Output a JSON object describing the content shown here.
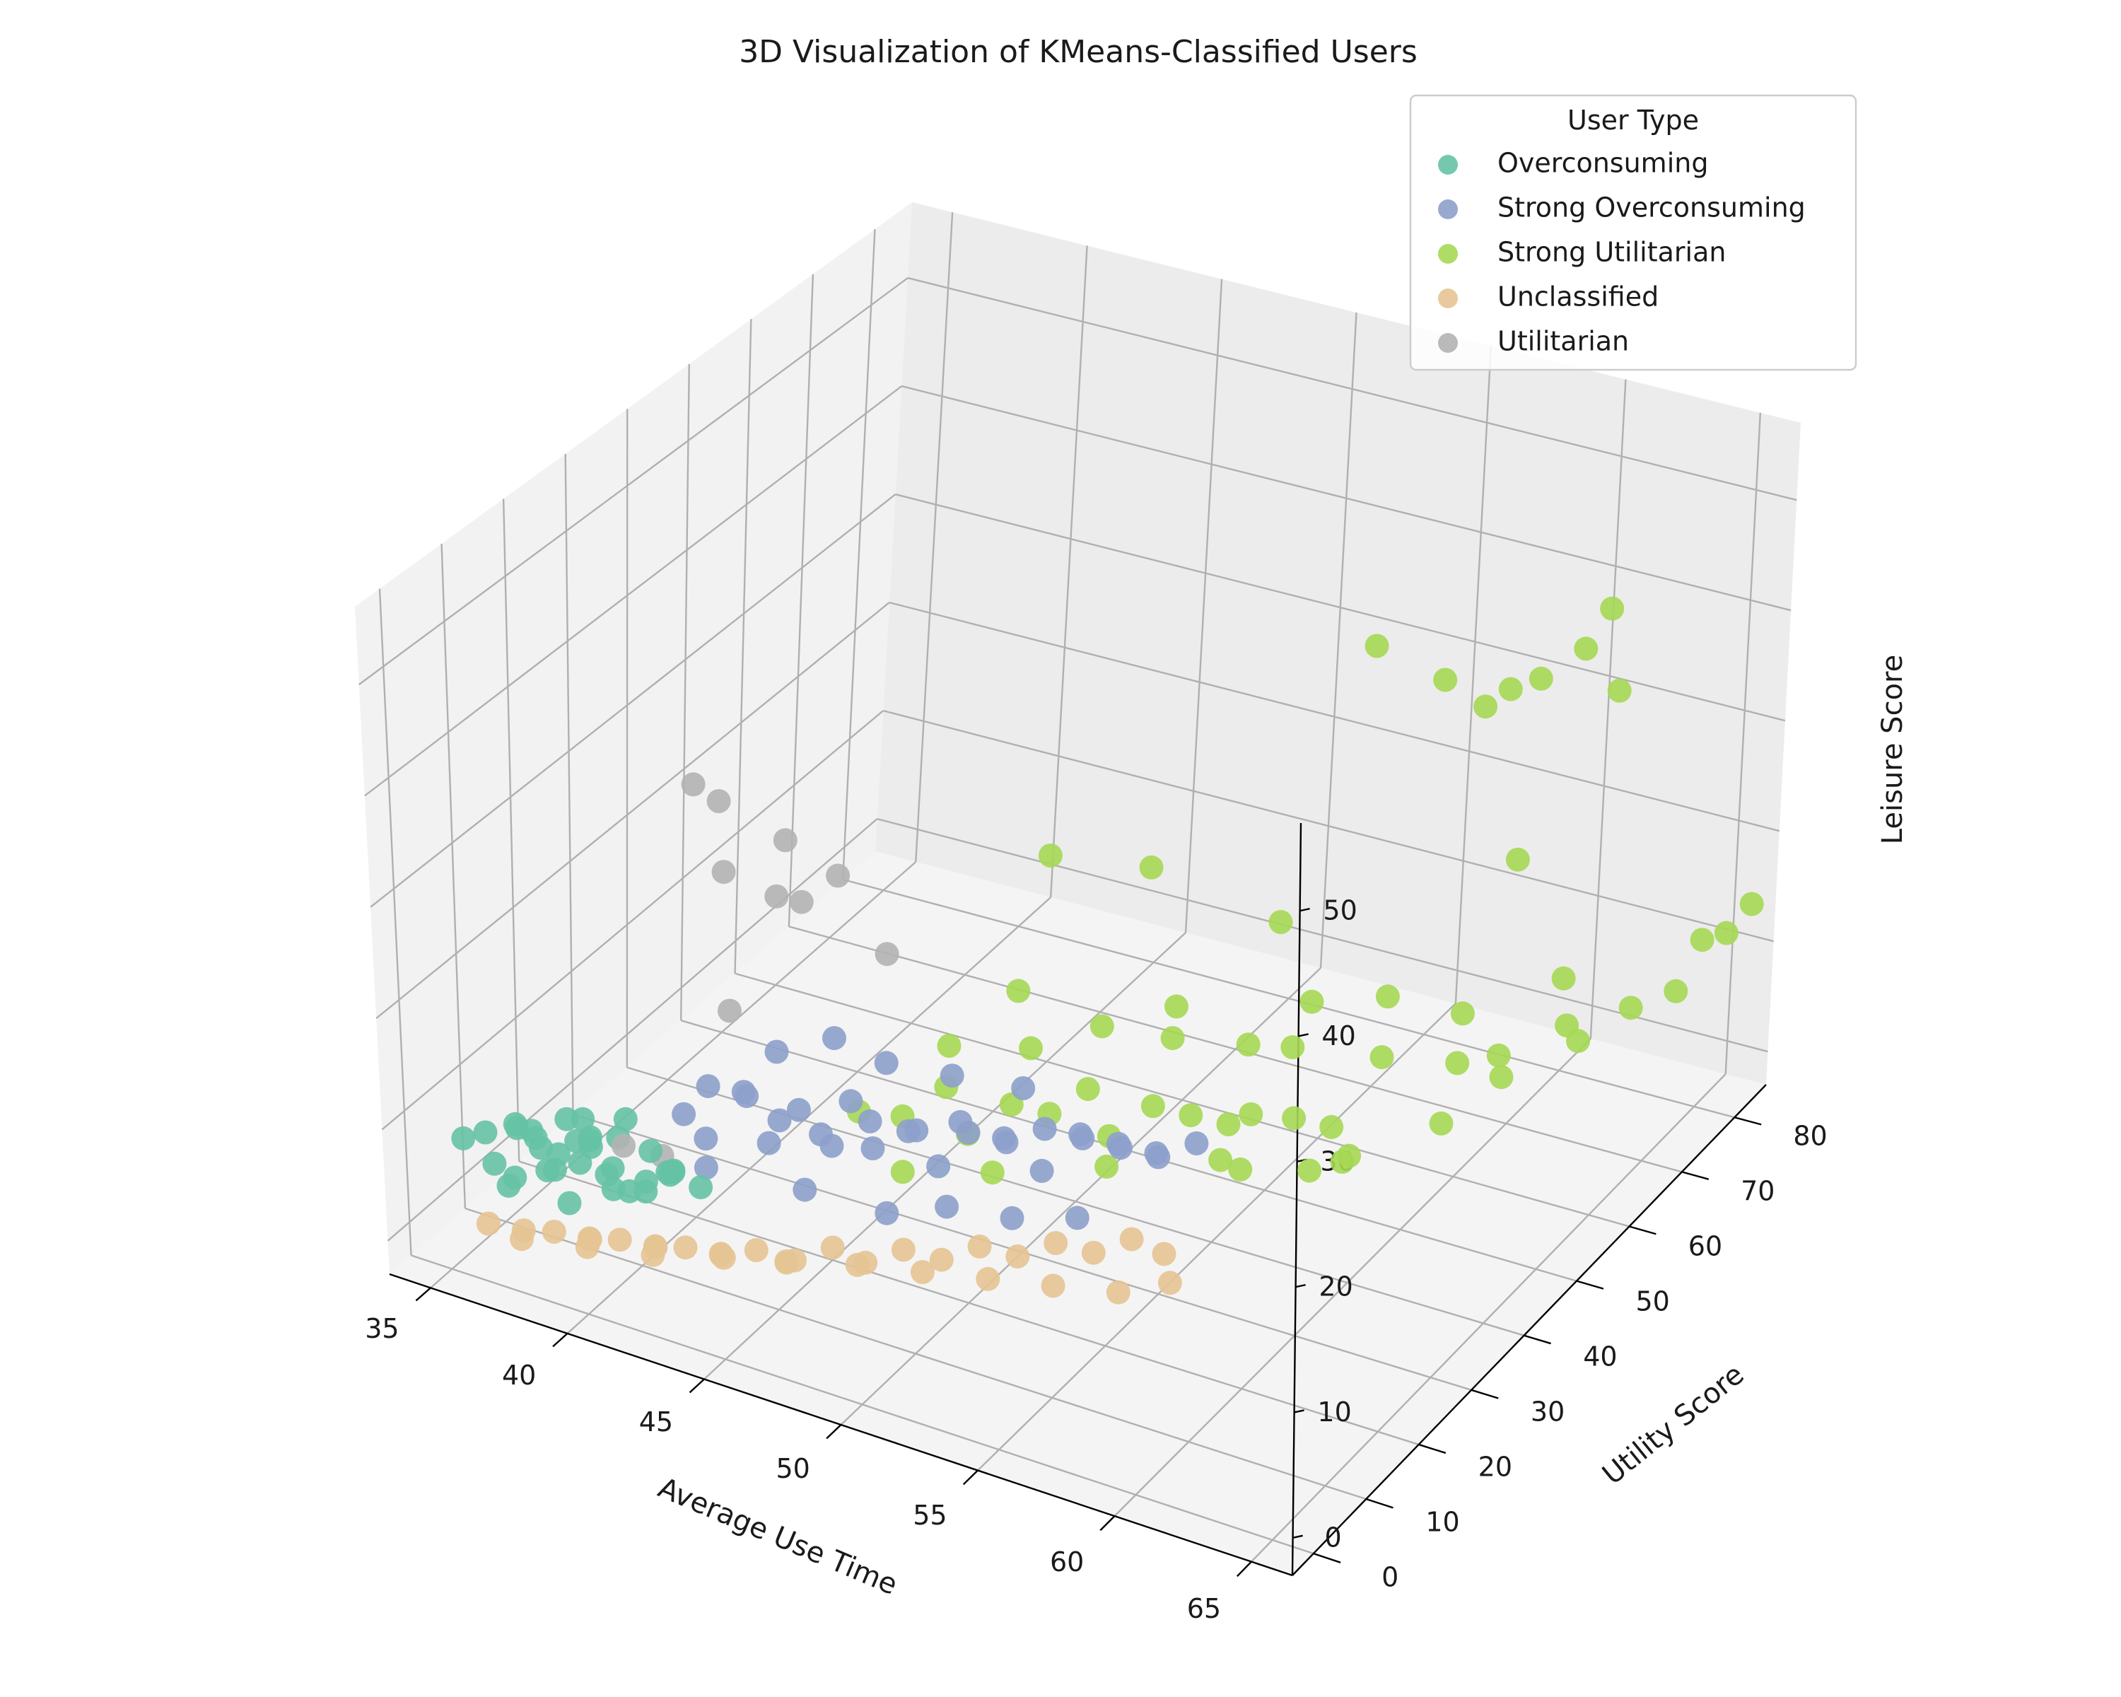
{
  "chart_data": {
    "type": "scatter",
    "title": "3D Visualization of KMeans-Classified Users",
    "xlabel": "Average Use Time",
    "ylabel": "Utility Score",
    "zlabel": "Leisure Score",
    "x_ticks": [
      "35",
      "40",
      "45",
      "50",
      "55",
      "60",
      "65"
    ],
    "y_ticks": [
      "0",
      "10",
      "20",
      "30",
      "40",
      "50",
      "60",
      "70",
      "80"
    ],
    "z_ticks": [
      "0",
      "10",
      "20",
      "30",
      "40",
      "50"
    ],
    "xlim": [
      33.5,
      66.5
    ],
    "ylim": [
      -4,
      86
    ],
    "zlim": [
      -3,
      57
    ],
    "grid": true,
    "legend": {
      "title": "User Type",
      "placement": "top-right",
      "entries": [
        "Overconsuming",
        "Strong Overconsuming",
        "Strong Utilitarian",
        "Unclassified",
        "Utilitarian"
      ]
    },
    "series": [
      {
        "name": "Overconsuming",
        "color": "#66c2a5",
        "points": [
          [
            35.2,
            2,
            8
          ],
          [
            35.6,
            4,
            8
          ],
          [
            36.1,
            3,
            6
          ],
          [
            36.5,
            5,
            9
          ],
          [
            36.8,
            2,
            5
          ],
          [
            37.2,
            6,
            7
          ],
          [
            37.5,
            3,
            10
          ],
          [
            37.9,
            5,
            6
          ],
          [
            38.3,
            7,
            8
          ],
          [
            38.6,
            4,
            4
          ],
          [
            39.0,
            6,
            9
          ],
          [
            39.4,
            8,
            6
          ],
          [
            39.8,
            5,
            7
          ],
          [
            40.2,
            7,
            5
          ],
          [
            40.6,
            9,
            8
          ],
          [
            41.0,
            6,
            6
          ],
          [
            36.0,
            7,
            3
          ],
          [
            37.0,
            8,
            4
          ],
          [
            38.0,
            9,
            5
          ],
          [
            39.0,
            10,
            3
          ],
          [
            40.0,
            11,
            4
          ],
          [
            41.0,
            10,
            6
          ],
          [
            37.4,
            1,
            11
          ],
          [
            38.8,
            3,
            12
          ],
          [
            39.6,
            2,
            13
          ],
          [
            36.4,
            9,
            6
          ],
          [
            38.2,
            10,
            7
          ],
          [
            40.8,
            12,
            5
          ],
          [
            41.5,
            8,
            7
          ],
          [
            39.3,
            11,
            9
          ],
          [
            37.8,
            12,
            5
          ],
          [
            36.8,
            11,
            4
          ],
          [
            38.6,
            13,
            6
          ],
          [
            40.4,
            14,
            4
          ],
          [
            42.0,
            11,
            5
          ]
        ]
      },
      {
        "name": "Strong Overconsuming",
        "color": "#8da0cb",
        "points": [
          [
            40.0,
            18,
            7
          ],
          [
            40.5,
            20,
            9
          ],
          [
            41.0,
            17,
            6
          ],
          [
            41.5,
            22,
            8
          ],
          [
            42.0,
            19,
            10
          ],
          [
            42.5,
            21,
            5
          ],
          [
            43.0,
            24,
            7
          ],
          [
            43.5,
            18,
            9
          ],
          [
            44.0,
            23,
            6
          ],
          [
            44.5,
            26,
            8
          ],
          [
            45.0,
            20,
            7
          ],
          [
            45.5,
            25,
            5
          ],
          [
            46.0,
            22,
            9
          ],
          [
            46.5,
            28,
            6
          ],
          [
            47.0,
            24,
            8
          ],
          [
            47.5,
            27,
            4
          ],
          [
            48.0,
            30,
            6
          ],
          [
            48.5,
            26,
            9
          ],
          [
            49.0,
            32,
            5
          ],
          [
            49.5,
            29,
            7
          ],
          [
            50.0,
            34,
            6
          ],
          [
            50.5,
            31,
            4
          ],
          [
            51.0,
            36,
            5
          ],
          [
            51.5,
            33,
            7
          ],
          [
            52.0,
            38,
            4
          ],
          [
            52.5,
            35,
            6
          ],
          [
            53.0,
            40,
            3
          ],
          [
            53.5,
            37,
            5
          ],
          [
            54.0,
            42,
            4
          ],
          [
            42.0,
            25,
            11
          ],
          [
            43.5,
            28,
            12
          ],
          [
            45.0,
            30,
            10
          ],
          [
            41.2,
            16,
            4
          ],
          [
            44.2,
            19,
            3
          ],
          [
            46.8,
            21,
            2
          ],
          [
            48.6,
            23,
            3
          ],
          [
            50.4,
            26,
            2
          ],
          [
            52.2,
            29,
            2
          ],
          [
            47.2,
            31,
            10
          ],
          [
            49.2,
            34,
            9
          ]
        ]
      },
      {
        "name": "Strong Utilitarian",
        "color": "#a6d854",
        "points": [
          [
            44.0,
            30,
            5
          ],
          [
            45.0,
            33,
            4
          ],
          [
            46.0,
            36,
            6
          ],
          [
            47.0,
            35,
            3
          ],
          [
            48.0,
            38,
            5
          ],
          [
            49.0,
            40,
            4
          ],
          [
            50.0,
            42,
            6
          ],
          [
            51.0,
            41,
            3
          ],
          [
            52.0,
            44,
            5
          ],
          [
            53.0,
            46,
            4
          ],
          [
            54.0,
            48,
            3
          ],
          [
            55.0,
            47,
            5
          ],
          [
            56.0,
            50,
            4
          ],
          [
            57.0,
            52,
            3
          ],
          [
            58.0,
            49,
            2
          ],
          [
            46.0,
            28,
            2
          ],
          [
            48.5,
            32,
            2
          ],
          [
            51.5,
            38,
            2
          ],
          [
            54.5,
            44,
            2
          ],
          [
            57.0,
            48,
            1
          ],
          [
            45.5,
            39,
            8
          ],
          [
            47.5,
            44,
            7
          ],
          [
            49.5,
            47,
            9
          ],
          [
            51.5,
            50,
            8
          ],
          [
            53.5,
            54,
            7
          ],
          [
            55.5,
            52,
            9
          ],
          [
            58.0,
            56,
            8
          ],
          [
            60.0,
            60,
            7
          ],
          [
            56.0,
            40,
            4
          ],
          [
            59.0,
            45,
            5
          ],
          [
            61.0,
            52,
            6
          ],
          [
            62.0,
            58,
            8
          ],
          [
            63.0,
            65,
            10
          ],
          [
            64.0,
            72,
            9
          ],
          [
            65.0,
            80,
            12
          ],
          [
            65.5,
            82,
            12
          ],
          [
            64.5,
            78,
            8
          ],
          [
            62.5,
            70,
            6
          ],
          [
            60.0,
            68,
            4
          ],
          [
            46.5,
            52,
            20
          ],
          [
            49.0,
            58,
            18
          ],
          [
            47.8,
            40,
            14
          ],
          [
            52.0,
            48,
            12
          ],
          [
            55.0,
            58,
            10
          ],
          [
            57.0,
            62,
            10
          ],
          [
            59.0,
            66,
            8
          ],
          [
            66.0,
            84,
            14
          ],
          [
            53.0,
            62,
            14
          ],
          [
            58.5,
            78,
            16
          ],
          [
            61.5,
            72,
            10
          ],
          [
            60.5,
            40,
            52
          ],
          [
            62.0,
            45,
            48
          ],
          [
            63.0,
            52,
            45
          ],
          [
            62.5,
            50,
            44
          ],
          [
            63.5,
            55,
            45
          ],
          [
            64.5,
            58,
            47
          ],
          [
            65.0,
            60,
            50
          ],
          [
            65.0,
            62,
            42
          ]
        ]
      },
      {
        "name": "Unclassified",
        "color": "#e5c494",
        "points": [
          [
            36.0,
            2,
            1
          ],
          [
            37.0,
            3,
            0
          ],
          [
            38.0,
            4,
            1
          ],
          [
            39.0,
            5,
            0
          ],
          [
            40.0,
            6,
            1
          ],
          [
            41.0,
            7,
            0
          ],
          [
            42.0,
            8,
            1
          ],
          [
            43.0,
            10,
            0
          ],
          [
            44.0,
            11,
            1
          ],
          [
            45.0,
            13,
            0
          ],
          [
            46.0,
            15,
            1
          ],
          [
            47.0,
            16,
            0
          ],
          [
            48.0,
            18,
            1
          ],
          [
            49.0,
            20,
            0
          ],
          [
            50.0,
            22,
            1
          ],
          [
            51.0,
            24,
            0
          ],
          [
            52.0,
            26,
            1
          ],
          [
            53.0,
            28,
            0
          ],
          [
            54.0,
            30,
            1
          ],
          [
            55.0,
            31,
            0
          ],
          [
            38.5,
            8,
            -1
          ],
          [
            40.5,
            10,
            -1
          ],
          [
            42.5,
            12,
            -1
          ],
          [
            44.5,
            14,
            -1
          ],
          [
            46.5,
            17,
            -1
          ],
          [
            48.5,
            19,
            -1
          ],
          [
            50.5,
            21,
            -1
          ],
          [
            52.5,
            23,
            -1
          ],
          [
            54.5,
            25,
            -1
          ],
          [
            56.0,
            27,
            0
          ],
          [
            37.5,
            1,
            2
          ],
          [
            39.5,
            3,
            2
          ],
          [
            41.5,
            5,
            2
          ],
          [
            43.5,
            7,
            2
          ],
          [
            45.5,
            9,
            2
          ]
        ]
      },
      {
        "name": "Utilitarian",
        "color": "#b3b3b3",
        "points": [
          [
            38.0,
            30,
            30
          ],
          [
            38.5,
            32,
            28
          ],
          [
            39.5,
            28,
            24
          ],
          [
            40.5,
            34,
            25
          ],
          [
            41.0,
            30,
            22
          ],
          [
            41.5,
            32,
            21
          ],
          [
            42.0,
            36,
            22
          ],
          [
            40.5,
            24,
            14
          ],
          [
            43.0,
            40,
            14
          ],
          [
            39.0,
            12,
            6
          ],
          [
            40.0,
            14,
            5
          ]
        ]
      }
    ]
  }
}
